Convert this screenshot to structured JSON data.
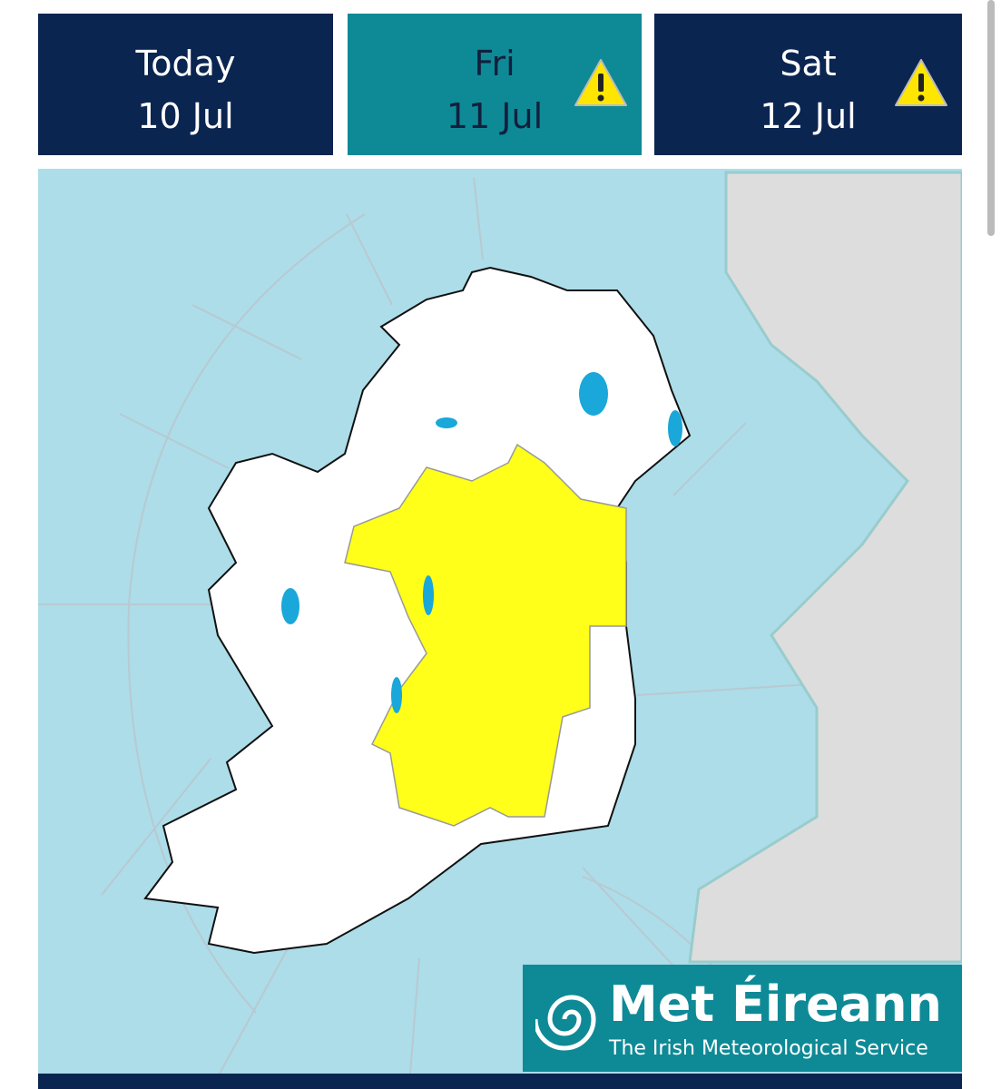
{
  "tabs": [
    {
      "day": "Today",
      "date": "10 Jul",
      "warning": false
    },
    {
      "day": "Fri",
      "date": "11 Jul",
      "warning": true
    },
    {
      "day": "Sat",
      "date": "12 Jul",
      "warning": true
    }
  ],
  "selected_tab": 1,
  "logo": {
    "name": "Met Éireann",
    "tagline": "The Irish Meteorological Service"
  }
}
